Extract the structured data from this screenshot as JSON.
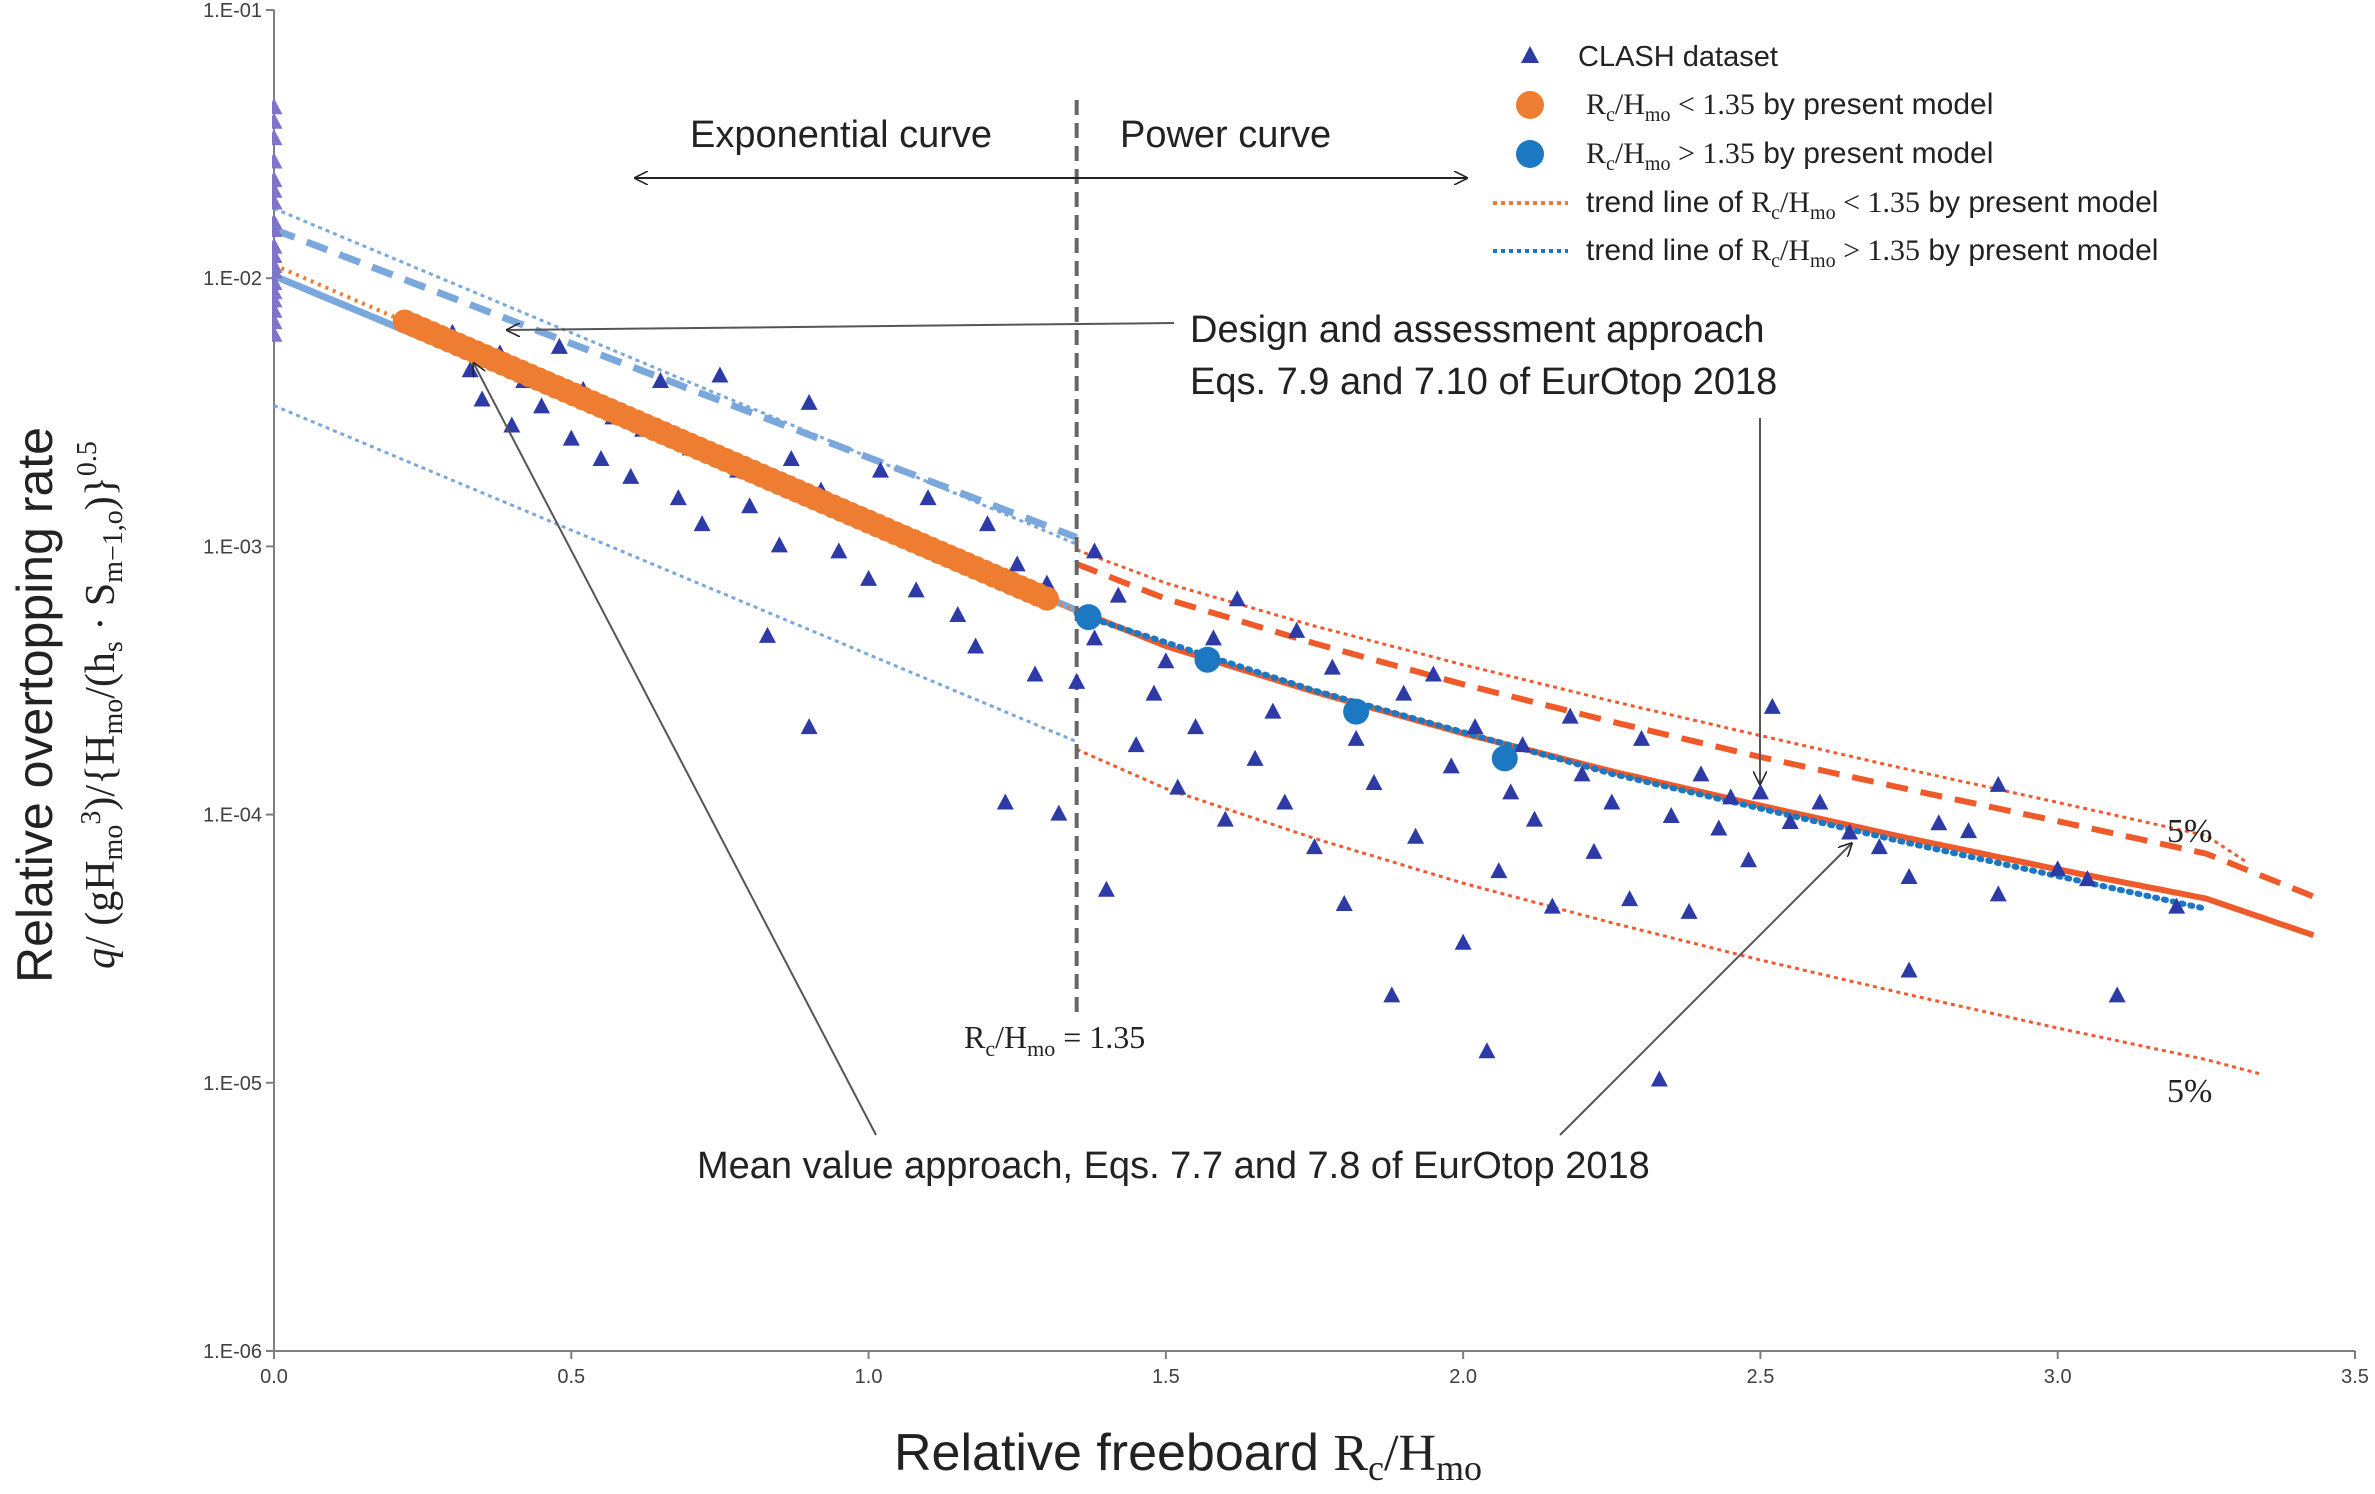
{
  "chart_data": {
    "type": "scatter",
    "xlabel": "Relative freeboard R_c/H_mo",
    "ylabel_line1": "Relative overtopping rate",
    "ylabel_line2": "q/ (gH_mo^3)/{H_mo/(h_s · S_m−1,o)}^0.5",
    "x_ticks": [
      "0.0",
      "0.5",
      "1.0",
      "1.5",
      "2.0",
      "2.5",
      "3.0",
      "3.5"
    ],
    "y_ticks": [
      "1.E-06",
      "1.E-05",
      "1.E-04",
      "1.E-03",
      "1.E-02",
      "1.E-01"
    ],
    "xlim": [
      0,
      3.5
    ],
    "ylim": [
      1e-06,
      0.1
    ],
    "y_scale": "log",
    "grid": false,
    "legend_position": "top-right",
    "legend": [
      {
        "label": "CLASH dataset",
        "marker": "triangle",
        "color": "#2e3ba7"
      },
      {
        "label": "R_c/H_mo < 1.35 by present model",
        "marker": "circle",
        "color": "#ee7d31"
      },
      {
        "label": "R_c/H_mo > 1.35 by present model",
        "marker": "circle",
        "color": "#1c78c2"
      },
      {
        "label": "trend line of R_c/H_mo < 1.35 by present model",
        "marker": "dotted-line",
        "color": "#ee7d31"
      },
      {
        "label": "trend line of R_c/H_mo > 1.35 by present model",
        "marker": "dotted-line",
        "color": "#1c78c2"
      }
    ],
    "annotations": {
      "exponential": "Exponential curve",
      "power": "Power curve",
      "design_line1": "Design and assessment approach",
      "design_line2": "Eqs. 7.9 and 7.10 of EurOtop 2018",
      "mean": "Mean value approach, Eqs. 7.7 and 7.8 of EurOtop 2018",
      "threshold": "R_c/H_mo = 1.35",
      "pct_upper": "5%",
      "pct_lower": "5%"
    },
    "threshold_x": 1.35,
    "curves": {
      "exponential_mean": {
        "x": [
          0.0,
          1.35
        ],
        "y": [
          0.0102,
          0.000578
        ]
      },
      "exponential_design": {
        "x": [
          0.0,
          1.35
        ],
        "y": [
          0.0152,
          0.00108
        ]
      },
      "exponential_upper_5pct": {
        "x": [
          0.0,
          1.35
        ],
        "y": [
          0.0182,
          0.00102
        ]
      },
      "exponential_lower_5pct": {
        "x": [
          0.0,
          1.35
        ],
        "y": [
          0.00335,
          0.000187
        ]
      },
      "power_mean": {
        "x": [
          1.35,
          1.5,
          1.75,
          2.0,
          2.25,
          2.5,
          2.75,
          3.0,
          3.25,
          3.43
        ],
        "y": [
          0.000578,
          0.000425,
          0.000287,
          0.000201,
          0.000145,
          0.000108,
          8.15e-05,
          6.25e-05,
          4.86e-05,
          3.55e-05
        ]
      },
      "power_design": {
        "x": [
          1.35,
          1.5,
          1.75,
          2.0,
          2.25,
          2.5,
          2.75,
          3.0,
          3.25,
          3.43
        ],
        "y": [
          0.00086,
          0.000638,
          0.000435,
          0.000306,
          0.000222,
          0.000164,
          0.000124,
          9.45e-05,
          7.15e-05,
          4.95e-05
        ]
      },
      "power_upper_5pct": {
        "x": [
          1.35,
          1.5,
          1.75,
          2.0,
          2.25,
          2.5,
          2.75,
          3.0,
          3.25,
          3.32
        ],
        "y": [
          0.00097,
          0.00073,
          0.000505,
          0.000362,
          0.000265,
          0.000197,
          0.000147,
          0.000111,
          8.35e-05,
          6.6e-05
        ]
      },
      "power_lower_5pct": {
        "x": [
          1.35,
          1.5,
          1.75,
          2.0,
          2.25,
          2.5,
          2.75,
          3.0,
          3.25,
          3.34
        ],
        "y": [
          0.000175,
          0.000125,
          8.15e-05,
          5.55e-05,
          3.95e-05,
          2.87e-05,
          2.13e-05,
          1.6e-05,
          1.22e-05,
          1.08e-05
        ]
      },
      "trend_lt_135": {
        "x": [
          0.0,
          1.35
        ],
        "y": [
          0.0112,
          0.000572
        ]
      },
      "trend_gt_135": {
        "x": [
          1.35,
          1.75,
          2.25,
          2.75,
          3.25
        ],
        "y": [
          0.000562,
          0.00029,
          0.000142,
          7.82e-05,
          4.45e-05
        ]
      }
    },
    "series": [
      {
        "name": "CLASH dataset",
        "points": [
          [
            0.0,
            0.043
          ],
          [
            0.0,
            0.038
          ],
          [
            0.0,
            0.033
          ],
          [
            0.0,
            0.027
          ],
          [
            0.0,
            0.023
          ],
          [
            0.0,
            0.021
          ],
          [
            0.0,
            0.019
          ],
          [
            0.0,
            0.016
          ],
          [
            0.0,
            0.015
          ],
          [
            0.0,
            0.013
          ],
          [
            0.0,
            0.012
          ],
          [
            0.0,
            0.011
          ],
          [
            0.0,
            0.0105
          ],
          [
            0.0,
            0.0095
          ],
          [
            0.0,
            0.0088
          ],
          [
            0.0,
            0.0082
          ],
          [
            0.0,
            0.0075
          ],
          [
            0.0,
            0.0068
          ],
          [
            0.0,
            0.0061
          ],
          [
            0.3,
            0.0062
          ],
          [
            0.33,
            0.0045
          ],
          [
            0.35,
            0.0035
          ],
          [
            0.38,
            0.0052
          ],
          [
            0.4,
            0.0028
          ],
          [
            0.42,
            0.0041
          ],
          [
            0.45,
            0.0033
          ],
          [
            0.48,
            0.0055
          ],
          [
            0.5,
            0.0025
          ],
          [
            0.52,
            0.0038
          ],
          [
            0.55,
            0.0021
          ],
          [
            0.57,
            0.003
          ],
          [
            0.6,
            0.0018
          ],
          [
            0.62,
            0.0027
          ],
          [
            0.65,
            0.0041
          ],
          [
            0.68,
            0.0015
          ],
          [
            0.7,
            0.0023
          ],
          [
            0.72,
            0.0012
          ],
          [
            0.75,
            0.0043
          ],
          [
            0.78,
            0.0019
          ],
          [
            0.8,
            0.0014
          ],
          [
            0.83,
            0.00046
          ],
          [
            0.85,
            0.001
          ],
          [
            0.87,
            0.0021
          ],
          [
            0.9,
            0.0034
          ],
          [
            0.9,
            0.00021
          ],
          [
            0.92,
            0.0016
          ],
          [
            0.95,
            0.00095
          ],
          [
            0.98,
            0.0013
          ],
          [
            1.0,
            0.00075
          ],
          [
            1.02,
            0.0019
          ],
          [
            1.05,
            0.0011
          ],
          [
            1.08,
            0.00068
          ],
          [
            1.1,
            0.0015
          ],
          [
            1.12,
            0.00092
          ],
          [
            1.15,
            0.00055
          ],
          [
            1.18,
            0.00042
          ],
          [
            1.2,
            0.0012
          ],
          [
            1.23,
            0.00011
          ],
          [
            1.25,
            0.00085
          ],
          [
            1.28,
            0.00033
          ],
          [
            1.3,
            0.00072
          ],
          [
            1.32,
            0.0001
          ],
          [
            1.35,
            0.00031
          ],
          [
            1.38,
            0.00095
          ],
          [
            1.38,
            0.00045
          ],
          [
            1.4,
            5.2e-05
          ],
          [
            1.42,
            0.00065
          ],
          [
            1.45,
            0.00018
          ],
          [
            1.48,
            0.00028
          ],
          [
            1.5,
            0.00037
          ],
          [
            1.52,
            0.000125
          ],
          [
            1.55,
            0.00021
          ],
          [
            1.58,
            0.00045
          ],
          [
            1.6,
            9.5e-05
          ],
          [
            1.62,
            0.00063
          ],
          [
            1.65,
            0.00016
          ],
          [
            1.68,
            0.00024
          ],
          [
            1.7,
            0.00011
          ],
          [
            1.72,
            0.00048
          ],
          [
            1.75,
            7.5e-05
          ],
          [
            1.78,
            0.00035
          ],
          [
            1.8,
            4.6e-05
          ],
          [
            1.82,
            0.00019
          ],
          [
            1.85,
            0.00013
          ],
          [
            1.88,
            2.1e-05
          ],
          [
            1.9,
            0.00028
          ],
          [
            1.92,
            8.2e-05
          ],
          [
            1.95,
            0.00033
          ],
          [
            1.98,
            0.00015
          ],
          [
            2.0,
            3.3e-05
          ],
          [
            2.02,
            0.00021
          ],
          [
            2.04,
            1.3e-05
          ],
          [
            2.06,
            6.1e-05
          ],
          [
            2.08,
            0.00012
          ],
          [
            2.1,
            0.00018
          ],
          [
            2.12,
            9.5e-05
          ],
          [
            2.15,
            4.5e-05
          ],
          [
            2.18,
            0.00023
          ],
          [
            2.2,
            0.00014
          ],
          [
            2.22,
            7.2e-05
          ],
          [
            2.25,
            0.00011
          ],
          [
            2.28,
            4.8e-05
          ],
          [
            2.3,
            0.00019
          ],
          [
            2.33,
            1.02e-05
          ],
          [
            2.35,
            9.8e-05
          ],
          [
            2.38,
            4.3e-05
          ],
          [
            2.4,
            0.00014
          ],
          [
            2.43,
            8.8e-05
          ],
          [
            2.45,
            0.000115
          ],
          [
            2.48,
            6.7e-05
          ],
          [
            2.5,
            0.00012
          ],
          [
            2.52,
            0.00025
          ],
          [
            2.55,
            9.3e-05
          ],
          [
            2.6,
            0.00011
          ],
          [
            2.65,
            8.5e-05
          ],
          [
            2.7,
            7.5e-05
          ],
          [
            2.75,
            5.8e-05
          ],
          [
            2.75,
            2.6e-05
          ],
          [
            2.8,
            9.2e-05
          ],
          [
            2.85,
            8.6e-05
          ],
          [
            2.9,
            0.000128
          ],
          [
            2.9,
            5e-05
          ],
          [
            3.0,
            6.2e-05
          ],
          [
            3.05,
            5.7e-05
          ],
          [
            3.1,
            2.1e-05
          ],
          [
            3.2,
            4.5e-05
          ]
        ]
      },
      {
        "name": "R_c/H_mo < 1.35 by present model",
        "x_range": [
          0.22,
          1.31
        ],
        "follows": "trend_lt_135"
      },
      {
        "name": "R_c/H_mo > 1.35 by present model",
        "points": [
          [
            1.37,
            0.000545
          ],
          [
            1.57,
            0.000378
          ],
          [
            1.82,
            0.000242
          ],
          [
            2.07,
            0.000162
          ]
        ]
      }
    ]
  }
}
